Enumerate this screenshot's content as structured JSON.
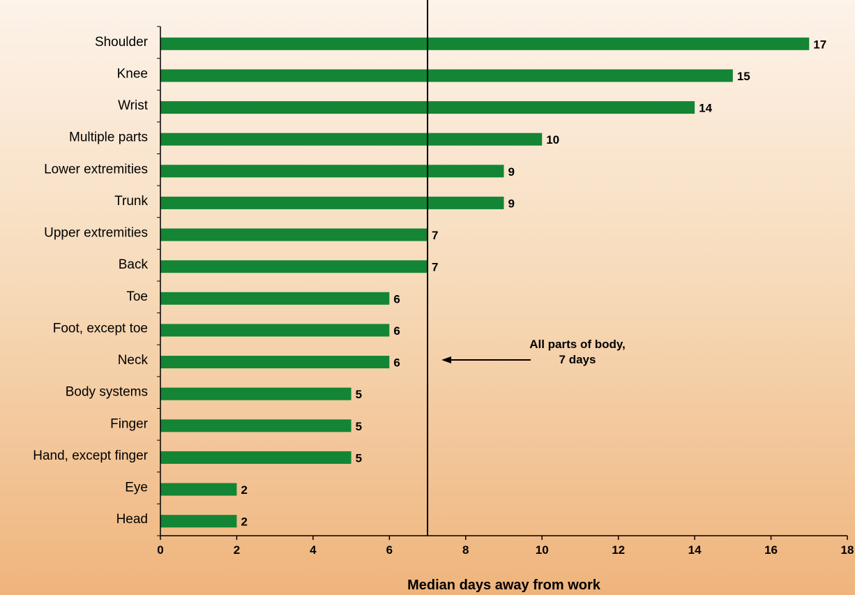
{
  "chart_data": {
    "type": "bar",
    "orientation": "horizontal",
    "categories": [
      "Shoulder",
      "Knee",
      "Wrist",
      "Multiple parts",
      "Lower extremities",
      "Trunk",
      "Upper extremities",
      "Back",
      "Toe",
      "Foot, except toe",
      "Neck",
      "Body systems",
      "Finger",
      "Hand, except finger",
      "Eye",
      "Head"
    ],
    "values": [
      17,
      15,
      14,
      10,
      9,
      9,
      7,
      7,
      6,
      6,
      6,
      5,
      5,
      5,
      2,
      2
    ],
    "xlabel": "Median days away from work",
    "ylabel": "",
    "xlim": [
      0,
      18
    ],
    "xticks": [
      0,
      2,
      4,
      6,
      8,
      10,
      12,
      14,
      16,
      18
    ],
    "reference_line": {
      "value": 7
    },
    "annotation": {
      "line1": "All parts of body,",
      "line2": "7 days"
    },
    "bar_color": "#138534",
    "grid": false
  }
}
